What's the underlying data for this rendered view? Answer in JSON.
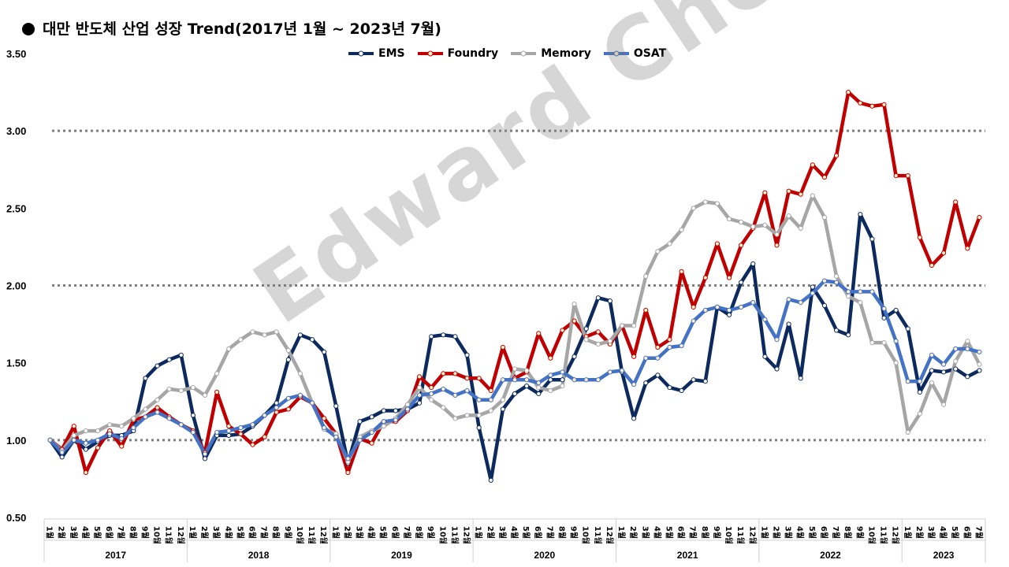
{
  "title": "대만 반도체 산업 성장 Trend(2017년 1월 ~ 2023년 7월)",
  "watermark": "Edward Choi",
  "chart_data": {
    "type": "line",
    "ylim": [
      0.5,
      3.5
    ],
    "yticks": [
      "0.50",
      "1.00",
      "1.50",
      "2.00",
      "2.50",
      "3.00",
      "3.50"
    ],
    "grid_lines": [
      1.0,
      2.0,
      3.0
    ],
    "month_suffix": "월",
    "legend_position": "top-center",
    "years": [
      {
        "label": "2017",
        "months": 12
      },
      {
        "label": "2018",
        "months": 12
      },
      {
        "label": "2019",
        "months": 12
      },
      {
        "label": "2020",
        "months": 12
      },
      {
        "label": "2021",
        "months": 12
      },
      {
        "label": "2022",
        "months": 12
      },
      {
        "label": "2023",
        "months": 7
      }
    ],
    "series": [
      {
        "name": "EMS",
        "color": "#0d2a5e",
        "values": [
          1.0,
          0.89,
          1.0,
          0.94,
          0.99,
          1.03,
          1.03,
          1.06,
          1.4,
          1.48,
          1.52,
          1.55,
          1.16,
          0.88,
          1.03,
          1.03,
          1.04,
          1.09,
          1.16,
          1.24,
          1.52,
          1.68,
          1.65,
          1.57,
          1.22,
          0.85,
          1.12,
          1.15,
          1.19,
          1.19,
          1.2,
          1.24,
          1.67,
          1.68,
          1.67,
          1.55,
          1.08,
          0.74,
          1.2,
          1.3,
          1.35,
          1.3,
          1.39,
          1.39,
          1.54,
          1.72,
          1.92,
          1.9,
          1.44,
          1.14,
          1.37,
          1.42,
          1.34,
          1.32,
          1.39,
          1.38,
          1.86,
          1.81,
          2.02,
          2.14,
          1.54,
          1.46,
          1.75,
          1.4,
          1.99,
          1.87,
          1.71,
          1.68,
          2.46,
          2.3,
          1.79,
          1.84,
          1.72,
          1.31,
          1.45,
          1.44,
          1.46,
          1.41,
          1.45
        ]
      },
      {
        "name": "Foundry",
        "color": "#c00000",
        "values": [
          1.0,
          0.94,
          1.09,
          0.79,
          0.95,
          1.06,
          0.96,
          1.13,
          1.15,
          1.21,
          1.15,
          1.1,
          1.06,
          0.92,
          1.31,
          1.09,
          1.04,
          0.97,
          1.02,
          1.18,
          1.2,
          1.28,
          1.24,
          1.14,
          1.04,
          0.79,
          1.01,
          0.98,
          1.12,
          1.12,
          1.19,
          1.41,
          1.34,
          1.43,
          1.43,
          1.4,
          1.4,
          1.32,
          1.6,
          1.4,
          1.44,
          1.69,
          1.53,
          1.71,
          1.77,
          1.67,
          1.7,
          1.62,
          1.74,
          1.54,
          1.84,
          1.6,
          1.65,
          2.09,
          1.86,
          2.05,
          2.27,
          2.05,
          2.26,
          2.37,
          2.6,
          2.26,
          2.61,
          2.59,
          2.78,
          2.7,
          2.84,
          3.25,
          3.18,
          3.16,
          3.17,
          2.71,
          2.71,
          2.31,
          2.13,
          2.21,
          2.54,
          2.24,
          2.44
        ]
      },
      {
        "name": "Memory",
        "color": "#a6a6a6",
        "values": [
          1.0,
          0.93,
          1.03,
          1.06,
          1.06,
          1.1,
          1.09,
          1.14,
          1.2,
          1.26,
          1.33,
          1.32,
          1.34,
          1.29,
          1.43,
          1.59,
          1.65,
          1.7,
          1.68,
          1.7,
          1.58,
          1.43,
          1.24,
          1.07,
          1.04,
          0.86,
          1.02,
          1.06,
          1.09,
          1.14,
          1.23,
          1.34,
          1.26,
          1.21,
          1.14,
          1.16,
          1.16,
          1.19,
          1.26,
          1.46,
          1.45,
          1.34,
          1.32,
          1.35,
          1.88,
          1.65,
          1.62,
          1.64,
          1.74,
          1.74,
          2.06,
          2.22,
          2.27,
          2.36,
          2.5,
          2.54,
          2.53,
          2.43,
          2.41,
          2.38,
          2.39,
          2.33,
          2.45,
          2.37,
          2.58,
          2.44,
          2.06,
          1.93,
          1.89,
          1.63,
          1.63,
          1.5,
          1.05,
          1.17,
          1.37,
          1.23,
          1.51,
          1.64,
          1.49
        ]
      },
      {
        "name": "OSAT",
        "color": "#4472c4",
        "values": [
          1.0,
          0.92,
          1.0,
          0.98,
          1.0,
          1.04,
          1.01,
          1.08,
          1.15,
          1.18,
          1.14,
          1.1,
          1.05,
          0.91,
          1.05,
          1.06,
          1.08,
          1.1,
          1.16,
          1.21,
          1.27,
          1.29,
          1.24,
          1.08,
          1.02,
          0.88,
          1.0,
          1.05,
          1.12,
          1.13,
          1.2,
          1.29,
          1.3,
          1.33,
          1.29,
          1.32,
          1.26,
          1.26,
          1.39,
          1.39,
          1.39,
          1.37,
          1.42,
          1.44,
          1.39,
          1.39,
          1.39,
          1.44,
          1.45,
          1.36,
          1.53,
          1.53,
          1.6,
          1.61,
          1.77,
          1.84,
          1.86,
          1.84,
          1.86,
          1.89,
          1.78,
          1.65,
          1.91,
          1.89,
          1.95,
          2.03,
          2.02,
          1.96,
          1.96,
          1.96,
          1.85,
          1.64,
          1.38,
          1.38,
          1.55,
          1.49,
          1.59,
          1.59,
          1.57
        ]
      }
    ]
  }
}
